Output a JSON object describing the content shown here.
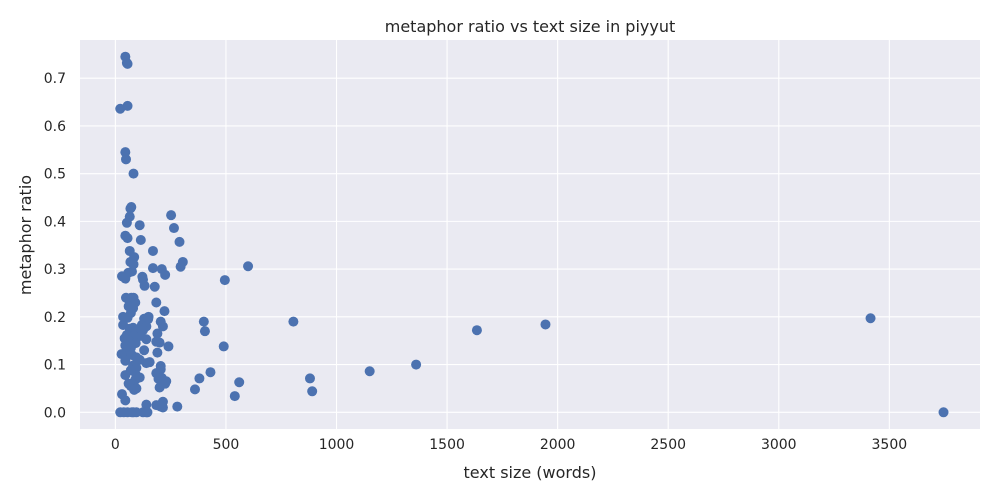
{
  "chart_data": {
    "type": "scatter",
    "title": "metaphor ratio vs text size in piyyut",
    "xlabel": "text size (words)",
    "ylabel": "metaphor ratio",
    "xlim": [
      -160,
      3910
    ],
    "ylim": [
      -0.035,
      0.78
    ],
    "xticks": [
      0,
      500,
      1000,
      1500,
      2000,
      2500,
      3000,
      3500
    ],
    "yticks": [
      0.0,
      0.1,
      0.2,
      0.3,
      0.4,
      0.5,
      0.6,
      0.7
    ],
    "ytick_labels": [
      "0.0",
      "0.1",
      "0.2",
      "0.3",
      "0.4",
      "0.5",
      "0.6",
      "0.7"
    ],
    "grid": true,
    "point_color": "#4c72b0",
    "background_color": "#eaeaf2",
    "grid_color": "#ffffff",
    "points": [
      [
        45,
        0.745
      ],
      [
        52,
        0.732
      ],
      [
        55,
        0.73
      ],
      [
        22,
        0.636
      ],
      [
        55,
        0.642
      ],
      [
        45,
        0.545
      ],
      [
        48,
        0.53
      ],
      [
        82,
        0.5
      ],
      [
        252,
        0.413
      ],
      [
        72,
        0.43
      ],
      [
        68,
        0.427
      ],
      [
        65,
        0.41
      ],
      [
        52,
        0.397
      ],
      [
        110,
        0.392
      ],
      [
        265,
        0.386
      ],
      [
        45,
        0.37
      ],
      [
        55,
        0.365
      ],
      [
        115,
        0.361
      ],
      [
        290,
        0.357
      ],
      [
        65,
        0.338
      ],
      [
        170,
        0.338
      ],
      [
        85,
        0.325
      ],
      [
        68,
        0.315
      ],
      [
        305,
        0.315
      ],
      [
        82,
        0.31
      ],
      [
        600,
        0.306
      ],
      [
        295,
        0.305
      ],
      [
        170,
        0.302
      ],
      [
        210,
        0.3
      ],
      [
        75,
        0.295
      ],
      [
        58,
        0.292
      ],
      [
        225,
        0.288
      ],
      [
        30,
        0.285
      ],
      [
        122,
        0.284
      ],
      [
        45,
        0.28
      ],
      [
        125,
        0.278
      ],
      [
        495,
        0.277
      ],
      [
        132,
        0.265
      ],
      [
        178,
        0.263
      ],
      [
        48,
        0.24
      ],
      [
        72,
        0.24
      ],
      [
        82,
        0.24
      ],
      [
        65,
        0.232
      ],
      [
        90,
        0.23
      ],
      [
        185,
        0.23
      ],
      [
        60,
        0.222
      ],
      [
        80,
        0.218
      ],
      [
        222,
        0.212
      ],
      [
        70,
        0.208
      ],
      [
        35,
        0.2
      ],
      [
        150,
        0.2
      ],
      [
        55,
        0.198
      ],
      [
        130,
        0.196
      ],
      [
        148,
        0.195
      ],
      [
        805,
        0.19
      ],
      [
        3415,
        0.197
      ],
      [
        400,
        0.19
      ],
      [
        205,
        0.19
      ],
      [
        1945,
        0.184
      ],
      [
        35,
        0.183
      ],
      [
        120,
        0.183
      ],
      [
        140,
        0.18
      ],
      [
        215,
        0.18
      ],
      [
        80,
        0.177
      ],
      [
        65,
        0.175
      ],
      [
        125,
        0.172
      ],
      [
        1635,
        0.172
      ],
      [
        405,
        0.17
      ],
      [
        95,
        0.168
      ],
      [
        190,
        0.165
      ],
      [
        52,
        0.162
      ],
      [
        85,
        0.16
      ],
      [
        115,
        0.16
      ],
      [
        42,
        0.155
      ],
      [
        140,
        0.153
      ],
      [
        60,
        0.15
      ],
      [
        185,
        0.148
      ],
      [
        200,
        0.146
      ],
      [
        92,
        0.145
      ],
      [
        45,
        0.14
      ],
      [
        240,
        0.138
      ],
      [
        490,
        0.138
      ],
      [
        70,
        0.135
      ],
      [
        130,
        0.13
      ],
      [
        50,
        0.127
      ],
      [
        190,
        0.125
      ],
      [
        28,
        0.122
      ],
      [
        75,
        0.12
      ],
      [
        95,
        0.115
      ],
      [
        110,
        0.11
      ],
      [
        45,
        0.108
      ],
      [
        155,
        0.105
      ],
      [
        140,
        0.103
      ],
      [
        1360,
        0.1
      ],
      [
        80,
        0.098
      ],
      [
        205,
        0.097
      ],
      [
        95,
        0.093
      ],
      [
        205,
        0.09
      ],
      [
        70,
        0.088
      ],
      [
        1150,
        0.086
      ],
      [
        430,
        0.084
      ],
      [
        185,
        0.082
      ],
      [
        45,
        0.078
      ],
      [
        95,
        0.077
      ],
      [
        110,
        0.073
      ],
      [
        210,
        0.072
      ],
      [
        380,
        0.071
      ],
      [
        880,
        0.071
      ],
      [
        195,
        0.07
      ],
      [
        90,
        0.068
      ],
      [
        230,
        0.065
      ],
      [
        560,
        0.063
      ],
      [
        60,
        0.06
      ],
      [
        225,
        0.06
      ],
      [
        80,
        0.058
      ],
      [
        70,
        0.055
      ],
      [
        200,
        0.052
      ],
      [
        95,
        0.05
      ],
      [
        360,
        0.048
      ],
      [
        85,
        0.047
      ],
      [
        890,
        0.044
      ],
      [
        30,
        0.038
      ],
      [
        540,
        0.034
      ],
      [
        45,
        0.025
      ],
      [
        215,
        0.022
      ],
      [
        140,
        0.016
      ],
      [
        185,
        0.015
      ],
      [
        205,
        0.012
      ],
      [
        280,
        0.012
      ],
      [
        215,
        0.01
      ],
      [
        22,
        0.0
      ],
      [
        38,
        0.0
      ],
      [
        55,
        0.0
      ],
      [
        75,
        0.0
      ],
      [
        82,
        0.0
      ],
      [
        95,
        0.0
      ],
      [
        125,
        0.0
      ],
      [
        140,
        0.0
      ],
      [
        145,
        0.0
      ],
      [
        3745,
        0.0
      ]
    ]
  }
}
